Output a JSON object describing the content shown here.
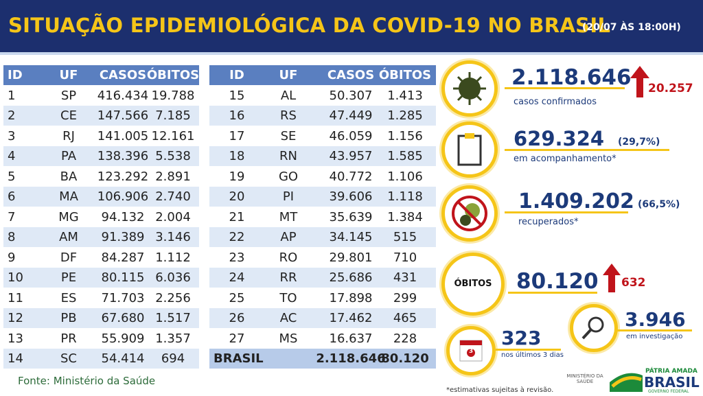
{
  "header": {
    "title": "SITUAÇÃO EPIDEMIOLÓGICA DA COVID-19 NO BRASIL",
    "date": "(20/07 ÀS 18:00H)"
  },
  "table": {
    "columns": [
      "ID",
      "UF",
      "CASOS",
      "ÓBITOS"
    ],
    "rows": [
      [
        "1",
        "SP",
        "416.434",
        "19.788"
      ],
      [
        "2",
        "CE",
        "147.566",
        "7.185"
      ],
      [
        "3",
        "RJ",
        "141.005",
        "12.161"
      ],
      [
        "4",
        "PA",
        "138.396",
        "5.538"
      ],
      [
        "5",
        "BA",
        "123.292",
        "2.891"
      ],
      [
        "6",
        "MA",
        "106.906",
        "2.740"
      ],
      [
        "7",
        "MG",
        "94.132",
        "2.004"
      ],
      [
        "8",
        "AM",
        "91.389",
        "3.146"
      ],
      [
        "9",
        "DF",
        "84.287",
        "1.112"
      ],
      [
        "10",
        "PE",
        "80.115",
        "6.036"
      ],
      [
        "11",
        "ES",
        "71.703",
        "2.256"
      ],
      [
        "12",
        "PB",
        "67.680",
        "1.517"
      ],
      [
        "13",
        "PR",
        "55.909",
        "1.357"
      ],
      [
        "14",
        "SC",
        "54.414",
        "694"
      ],
      [
        "15",
        "AL",
        "50.307",
        "1.413"
      ],
      [
        "16",
        "RS",
        "47.449",
        "1.285"
      ],
      [
        "17",
        "SE",
        "46.059",
        "1.156"
      ],
      [
        "18",
        "RN",
        "43.957",
        "1.585"
      ],
      [
        "19",
        "GO",
        "40.772",
        "1.106"
      ],
      [
        "20",
        "PI",
        "39.606",
        "1.118"
      ],
      [
        "21",
        "MT",
        "35.639",
        "1.384"
      ],
      [
        "22",
        "AP",
        "34.145",
        "515"
      ],
      [
        "23",
        "RO",
        "29.801",
        "710"
      ],
      [
        "24",
        "RR",
        "25.686",
        "431"
      ],
      [
        "25",
        "TO",
        "17.898",
        "299"
      ],
      [
        "26",
        "AC",
        "17.462",
        "465"
      ],
      [
        "27",
        "MS",
        "16.637",
        "228"
      ]
    ],
    "total": [
      "BRASIL",
      "2.118.646",
      "80.120"
    ]
  },
  "source": "Fonte: Ministério da Saúde",
  "stats": {
    "cases": {
      "value": "2.118.646",
      "delta": "20.257",
      "label": "casos confirmados"
    },
    "followup": {
      "value": "629.324",
      "pct": "(29,7%)",
      "label": "em acompanhamento*"
    },
    "recovered": {
      "value": "1.409.202",
      "pct": "(66,5%)",
      "label": "recuperados*"
    },
    "deaths": {
      "badge": "ÓBITOS",
      "value": "80.120",
      "delta": "632"
    },
    "investigation": {
      "value": "3.946",
      "label": "em investigação"
    },
    "recent": {
      "icon": "3",
      "value": "323",
      "label": "nos últimos 3 dias"
    }
  },
  "footnote": "*estimativas sujeitas à revisão.",
  "logos": {
    "ministry": "MINISTÉRIO DA SAÚDE",
    "motto": "PÁTRIA AMADA",
    "brand": "BRASIL",
    "gov": "GOVERNO FEDERAL"
  }
}
